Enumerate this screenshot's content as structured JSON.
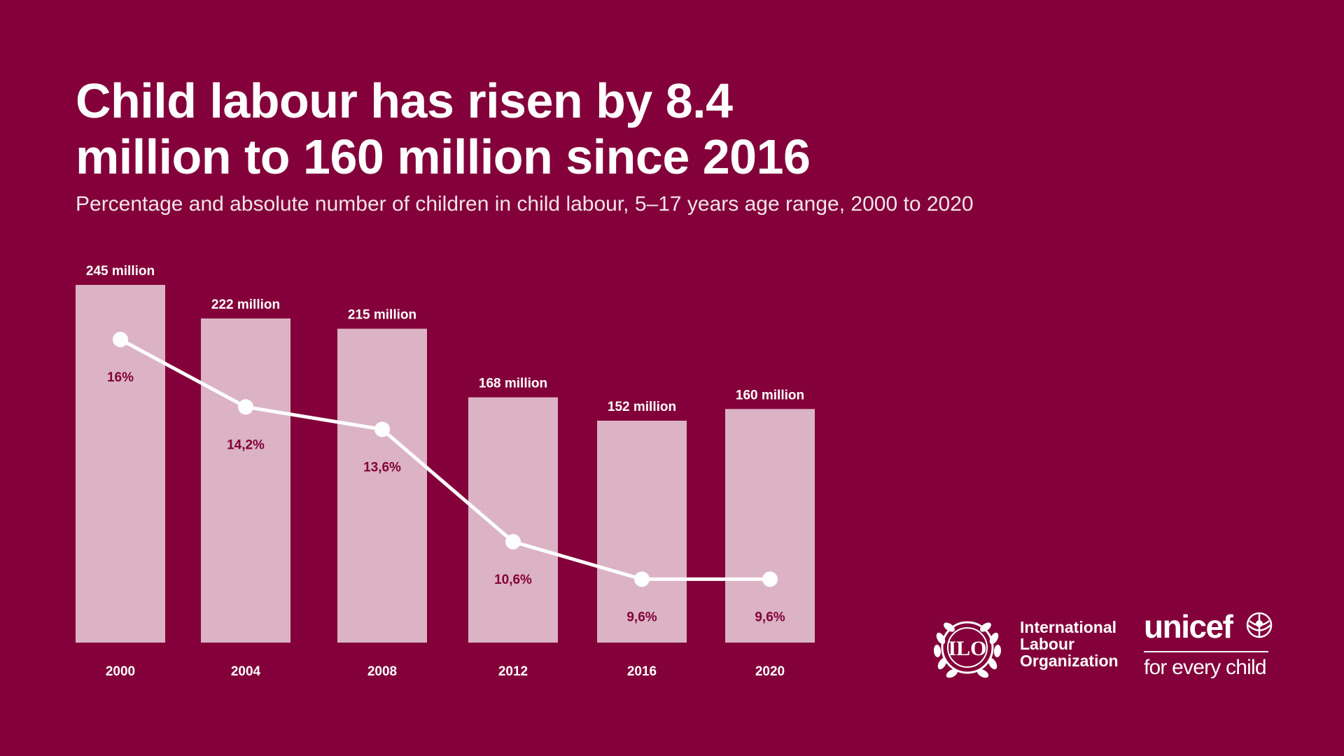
{
  "title_lines": [
    "Child labour has risen by 8.4",
    "million to 160 million since 2016"
  ],
  "subtitle": "Percentage and absolute number of children in child labour, 5–17 years age range, 2000 to 2020",
  "colors": {
    "background": "#83003a",
    "bar": "#dbb3c4",
    "line": "#ffffff",
    "percent_label": "#83003a",
    "text": "#ffffff"
  },
  "chart_data": {
    "type": "bar",
    "categories": [
      "2000",
      "2004",
      "2008",
      "2012",
      "2016",
      "2020"
    ],
    "series": [
      {
        "values": [
          245,
          222,
          215,
          168,
          152,
          160
        ],
        "labels": [
          "245 million",
          "222 million",
          "215 million",
          "168 million",
          "152  million",
          "160 million"
        ],
        "mark": "bar"
      },
      {
        "values": [
          16,
          14.2,
          13.6,
          10.6,
          9.6,
          9.6
        ],
        "labels": [
          "16%",
          "14,2%",
          "13,6%",
          "10,6%",
          "9,6%",
          "9,6%"
        ],
        "mark": "line"
      }
    ],
    "title": "Child labour has risen by 8.4 million to 160 million since 2016",
    "subtitle": "Percentage and absolute number of children in child labour, 5–17 years age range, 2000 to 2020",
    "xlabel": "",
    "ylabel": "",
    "ylim_bars": [
      0,
      245
    ],
    "ylim_line": [
      0,
      16
    ],
    "grid": false,
    "legend": "none"
  },
  "logos": {
    "ilo": {
      "emblem_text": "ILO",
      "name_lines": [
        "International",
        "Labour",
        "Organization"
      ],
      "icon": "ilo-emblem-icon"
    },
    "unicef": {
      "wordmark": "unicef",
      "tagline": "for every child",
      "icon": "unicef-globe-icon"
    }
  }
}
